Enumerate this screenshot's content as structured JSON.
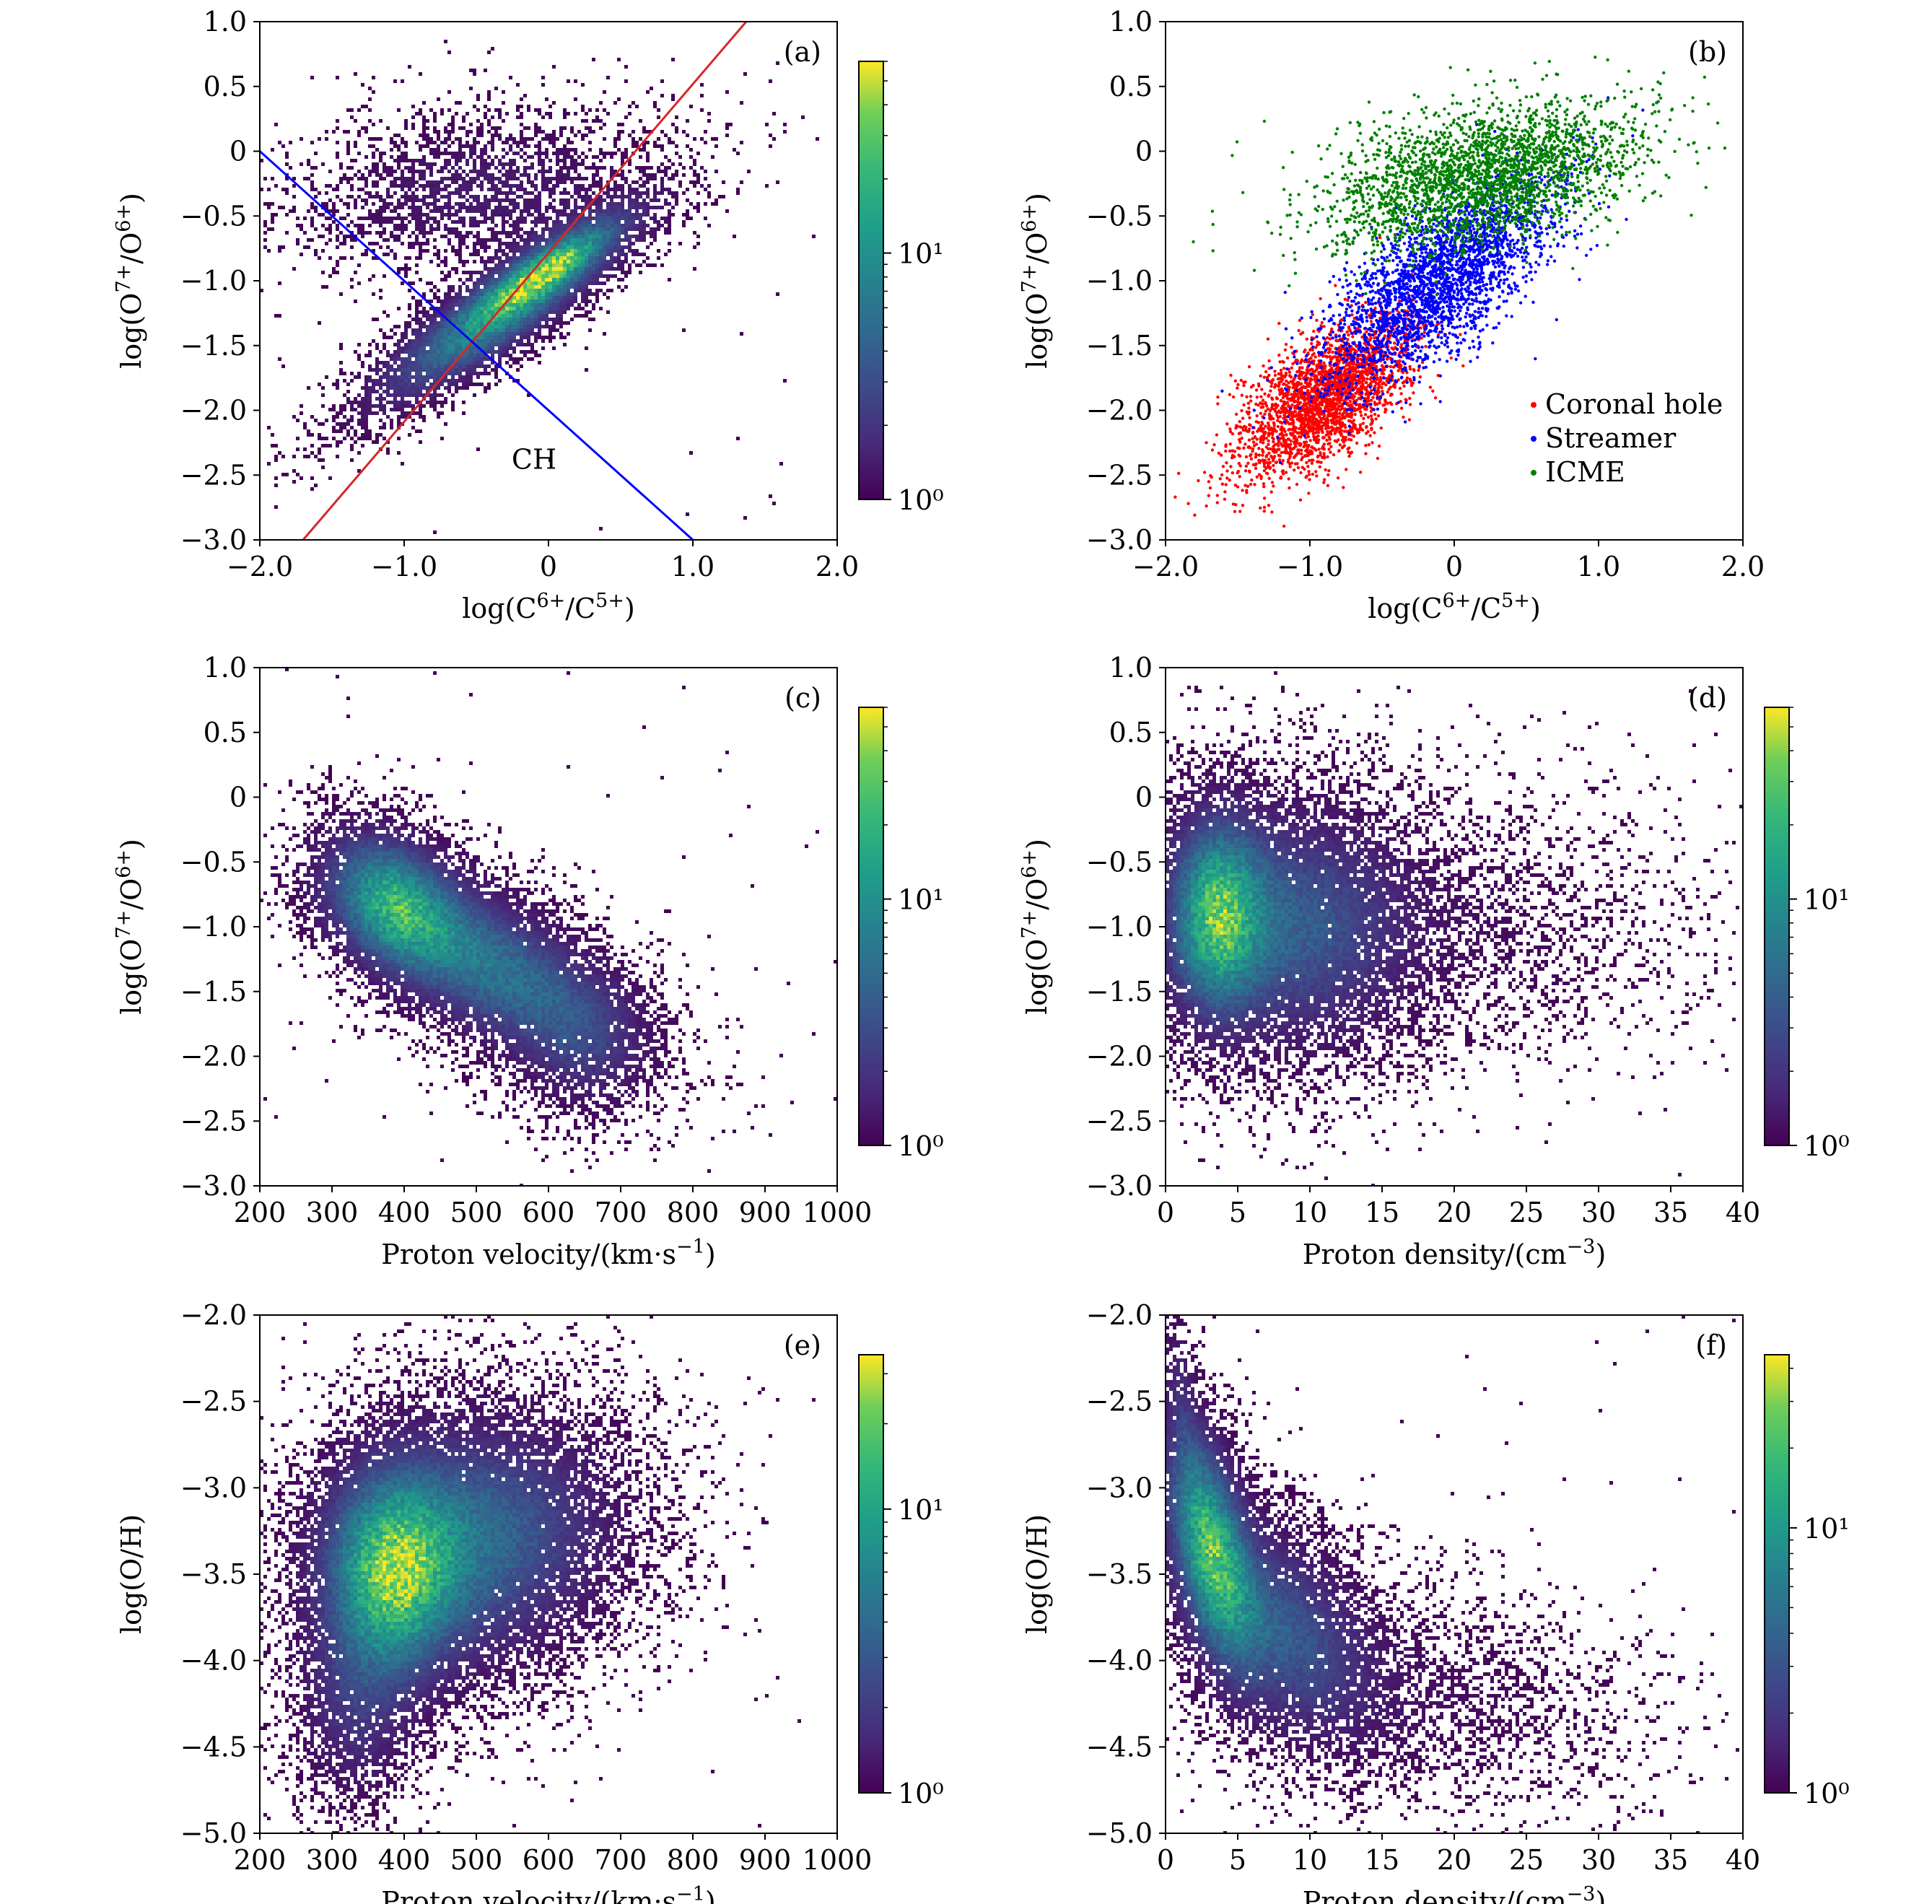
{
  "chart_data": [
    {
      "id": "a",
      "type": "heatmap",
      "panel_label": "(a)",
      "xlabel": "log(C6+/C5+)",
      "ylabel": "log(O7+/O6+)",
      "xlim": [
        -2.0,
        2.0
      ],
      "ylim": [
        -3.0,
        1.0
      ],
      "xticks": [
        "−2.0",
        "−1.0",
        "0",
        "1.0",
        "2.0"
      ],
      "yticks": [
        "−3.0",
        "−2.5",
        "−2.0",
        "−1.5",
        "−1.0",
        "−0.5",
        "0",
        "0.5",
        "1.0"
      ],
      "colorbar": {
        "scale": "log",
        "labels": [
          "10⁰",
          "10¹"
        ],
        "range": [
          1,
          60
        ]
      },
      "density": {
        "clusters": [
          {
            "x": -0.3,
            "y": -1.2,
            "sx": 0.55,
            "sy": 0.45,
            "rho": 0.88,
            "w": 0.8
          },
          {
            "x": 0.0,
            "y": -0.9,
            "sx": 0.28,
            "sy": 0.22,
            "rho": 0.85,
            "w": 0.5
          },
          {
            "x": -0.5,
            "y": -0.3,
            "sx": 0.7,
            "sy": 0.35,
            "rho": 0.2,
            "w": 0.18
          }
        ]
      },
      "lines": [
        {
          "name": "red-boundary",
          "color": "#d62728",
          "x": [
            -1.7,
            1.37
          ],
          "y": [
            -3.0,
            1.0
          ]
        },
        {
          "name": "blue-boundary",
          "color": "#0000ff",
          "x": [
            -2.0,
            1.0
          ],
          "y": [
            0.0,
            -3.0
          ]
        }
      ],
      "annotations": [
        {
          "text": "CH",
          "x": -0.1,
          "y": -2.45
        }
      ]
    },
    {
      "id": "b",
      "type": "scatter",
      "panel_label": "(b)",
      "xlabel": "log(C6+/C5+)",
      "ylabel": "log(O7+/O6+)",
      "xlim": [
        -2.0,
        2.0
      ],
      "ylim": [
        -3.0,
        1.0
      ],
      "xticks": [
        "−2.0",
        "−1.0",
        "0",
        "1.0",
        "2.0"
      ],
      "yticks": [
        "−3.0",
        "−2.5",
        "−2.0",
        "−1.5",
        "−1.0",
        "−0.5",
        "0",
        "0.5",
        "1.0"
      ],
      "legend": {
        "position": "lower-right"
      },
      "series": [
        {
          "name": "Coronal hole",
          "color": "#ff0000",
          "clusters": [
            {
              "x": -0.9,
              "y": -1.9,
              "sx": 0.3,
              "sy": 0.3,
              "rho": 0.6,
              "w": 1.0
            }
          ]
        },
        {
          "name": "Streamer",
          "color": "#0000ff",
          "clusters": [
            {
              "x": -0.1,
              "y": -1.0,
              "sx": 0.4,
              "sy": 0.4,
              "rho": 0.7,
              "w": 1.0
            }
          ]
        },
        {
          "name": "ICME",
          "color": "#008000",
          "clusters": [
            {
              "x": 0.2,
              "y": -0.2,
              "sx": 0.55,
              "sy": 0.28,
              "rho": 0.4,
              "w": 1.0
            }
          ]
        }
      ]
    },
    {
      "id": "c",
      "type": "heatmap",
      "panel_label": "(c)",
      "xlabel": "Proton velocity/(km·s−1)",
      "ylabel": "log(O7+/O6+)",
      "xlim": [
        200,
        1000
      ],
      "ylim": [
        -3.0,
        1.0
      ],
      "xticks": [
        "200",
        "300",
        "400",
        "500",
        "600",
        "700",
        "800",
        "900",
        "1000"
      ],
      "yticks": [
        "−3.0",
        "−2.5",
        "−2.0",
        "−1.5",
        "−1.0",
        "−0.5",
        "0",
        "0.5",
        "1.0"
      ],
      "colorbar": {
        "scale": "log",
        "labels": [
          "10⁰",
          "10¹"
        ],
        "range": [
          1,
          60
        ]
      },
      "density": {
        "clusters": [
          {
            "x": 380,
            "y": -0.8,
            "sx": 60,
            "sy": 0.35,
            "rho": -0.3,
            "w": 0.7
          },
          {
            "x": 520,
            "y": -1.3,
            "sx": 110,
            "sy": 0.45,
            "rho": -0.6,
            "w": 0.6
          },
          {
            "x": 650,
            "y": -1.9,
            "sx": 60,
            "sy": 0.35,
            "rho": 0.0,
            "w": 0.2
          }
        ]
      }
    },
    {
      "id": "d",
      "type": "heatmap",
      "panel_label": "(d)",
      "xlabel": "Proton density/(cm−3)",
      "ylabel": "log(O7+/O6+)",
      "xlim": [
        0,
        40
      ],
      "ylim": [
        -3.0,
        1.0
      ],
      "xticks": [
        "0",
        "5",
        "10",
        "15",
        "20",
        "25",
        "30",
        "35",
        "40"
      ],
      "yticks": [
        "−3.0",
        "−2.5",
        "−2.0",
        "−1.5",
        "−1.0",
        "−0.5",
        "0",
        "0.5",
        "1.0"
      ],
      "colorbar": {
        "scale": "log",
        "labels": [
          "10⁰",
          "10¹"
        ],
        "range": [
          1,
          60
        ]
      },
      "density": {
        "clusters": [
          {
            "x": 3.5,
            "y": -0.9,
            "sx": 2.2,
            "sy": 0.5,
            "rho": 0.0,
            "w": 0.8
          },
          {
            "x": 9.0,
            "y": -1.0,
            "sx": 5.0,
            "sy": 0.6,
            "rho": 0.0,
            "w": 0.45
          },
          {
            "x": 20.0,
            "y": -1.0,
            "sx": 9.0,
            "sy": 0.55,
            "rho": 0.0,
            "w": 0.08
          }
        ]
      }
    },
    {
      "id": "e",
      "type": "heatmap",
      "panel_label": "(e)",
      "xlabel": "Proton velocity/(km·s−1)",
      "ylabel": "log(O/H)",
      "xlim": [
        200,
        1000
      ],
      "ylim": [
        -5.0,
        -2.0
      ],
      "xticks": [
        "200",
        "300",
        "400",
        "500",
        "600",
        "700",
        "800",
        "900",
        "1000"
      ],
      "yticks": [
        "−5.0",
        "−4.5",
        "−4.0",
        "−3.5",
        "−3.0",
        "−2.5",
        "−2.0"
      ],
      "colorbar": {
        "scale": "log",
        "labels": [
          "10⁰",
          "10¹"
        ],
        "range": [
          1,
          35
        ]
      },
      "density": {
        "clusters": [
          {
            "x": 380,
            "y": -3.5,
            "sx": 60,
            "sy": 0.4,
            "rho": 0.0,
            "w": 0.8
          },
          {
            "x": 500,
            "y": -3.3,
            "sx": 120,
            "sy": 0.45,
            "rho": 0.1,
            "w": 0.55
          },
          {
            "x": 330,
            "y": -4.3,
            "sx": 50,
            "sy": 0.35,
            "rho": 0.0,
            "w": 0.25
          }
        ]
      }
    },
    {
      "id": "f",
      "type": "heatmap",
      "panel_label": "(f)",
      "xlabel": "Proton density/(cm−3)",
      "ylabel": "log(O/H)",
      "xlim": [
        0,
        40
      ],
      "ylim": [
        -5.0,
        -2.0
      ],
      "xticks": [
        "0",
        "5",
        "10",
        "15",
        "20",
        "25",
        "30",
        "35",
        "40"
      ],
      "yticks": [
        "−5.0",
        "−4.5",
        "−4.0",
        "−3.5",
        "−3.0",
        "−2.5",
        "−2.0"
      ],
      "colorbar": {
        "scale": "log",
        "labels": [
          "10⁰",
          "10¹"
        ],
        "range": [
          1,
          45
        ]
      },
      "density": {
        "clusters": [
          {
            "x": 3.0,
            "y": -3.3,
            "sx": 2.0,
            "sy": 0.45,
            "rho": -0.5,
            "w": 0.85
          },
          {
            "x": 8.0,
            "y": -3.8,
            "sx": 4.0,
            "sy": 0.4,
            "rho": -0.4,
            "w": 0.45
          },
          {
            "x": 18.0,
            "y": -4.2,
            "sx": 8.0,
            "sy": 0.35,
            "rho": -0.2,
            "w": 0.1
          },
          {
            "x": 1.0,
            "y": -2.4,
            "sx": 0.8,
            "sy": 0.3,
            "rho": -0.5,
            "w": 0.15
          }
        ]
      }
    }
  ]
}
